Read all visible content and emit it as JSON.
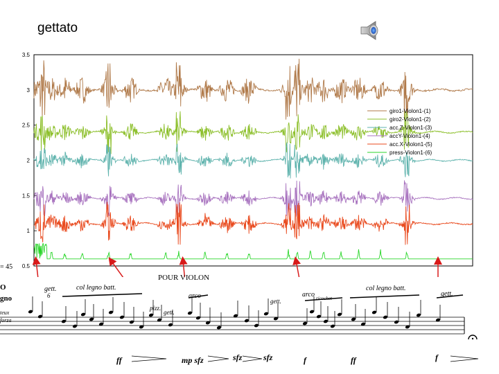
{
  "slide": {
    "title": "gettato"
  },
  "icons": {
    "speaker": "speaker-icon"
  },
  "chart_data": {
    "type": "line",
    "title": "",
    "xlabel": "",
    "ylabel": "",
    "ylim": [
      0.5,
      3.5
    ],
    "yticks": [
      "0.5",
      "1",
      "1.5",
      "2",
      "2.5",
      "3",
      "3.5"
    ],
    "xlim": [
      0,
      100
    ],
    "grid": false,
    "legend_position": "right",
    "series": [
      {
        "name": "giro1-Violon1-(1)",
        "color": "#b07a4a",
        "baseline": 3.0,
        "amp": 0.22
      },
      {
        "name": "giro2-Violon1-(2)",
        "color": "#8cbf2a",
        "baseline": 2.4,
        "amp": 0.14
      },
      {
        "name": "acc.Z-Violon1-(3)",
        "color": "#5fb3ad",
        "baseline": 2.0,
        "amp": 0.12
      },
      {
        "name": "accY-Violon1-(4)",
        "color": "#a873bf",
        "baseline": 1.46,
        "amp": 0.12
      },
      {
        "name": "acc.X-Violon1-(5)",
        "color": "#e94a1e",
        "baseline": 1.1,
        "amp": 0.14
      },
      {
        "name": "press-Violon1-(6)",
        "color": "#29d629",
        "baseline": 0.6,
        "amp": 0.14
      }
    ],
    "events_x": [
      2,
      17,
      33,
      58,
      60,
      85
    ]
  },
  "score": {
    "tempo": "= 45",
    "left_labels": [
      "O",
      "gno",
      "teux",
      "forza"
    ],
    "instrument": "POUR VIOLON",
    "annotations": [
      {
        "text": "gett.",
        "sub": "6"
      },
      {
        "text": "col legno batt."
      },
      {
        "text": "pizz."
      },
      {
        "text": "gett."
      },
      {
        "text": "arco"
      },
      {
        "text": "gett."
      },
      {
        "text": "arco",
        "sub": "ricochet"
      },
      {
        "text": "col legno batt."
      },
      {
        "text": "gett."
      }
    ],
    "dynamics": [
      "ff",
      "mp sfz",
      "sfz",
      "sfz",
      "f",
      "ff",
      "f"
    ]
  }
}
